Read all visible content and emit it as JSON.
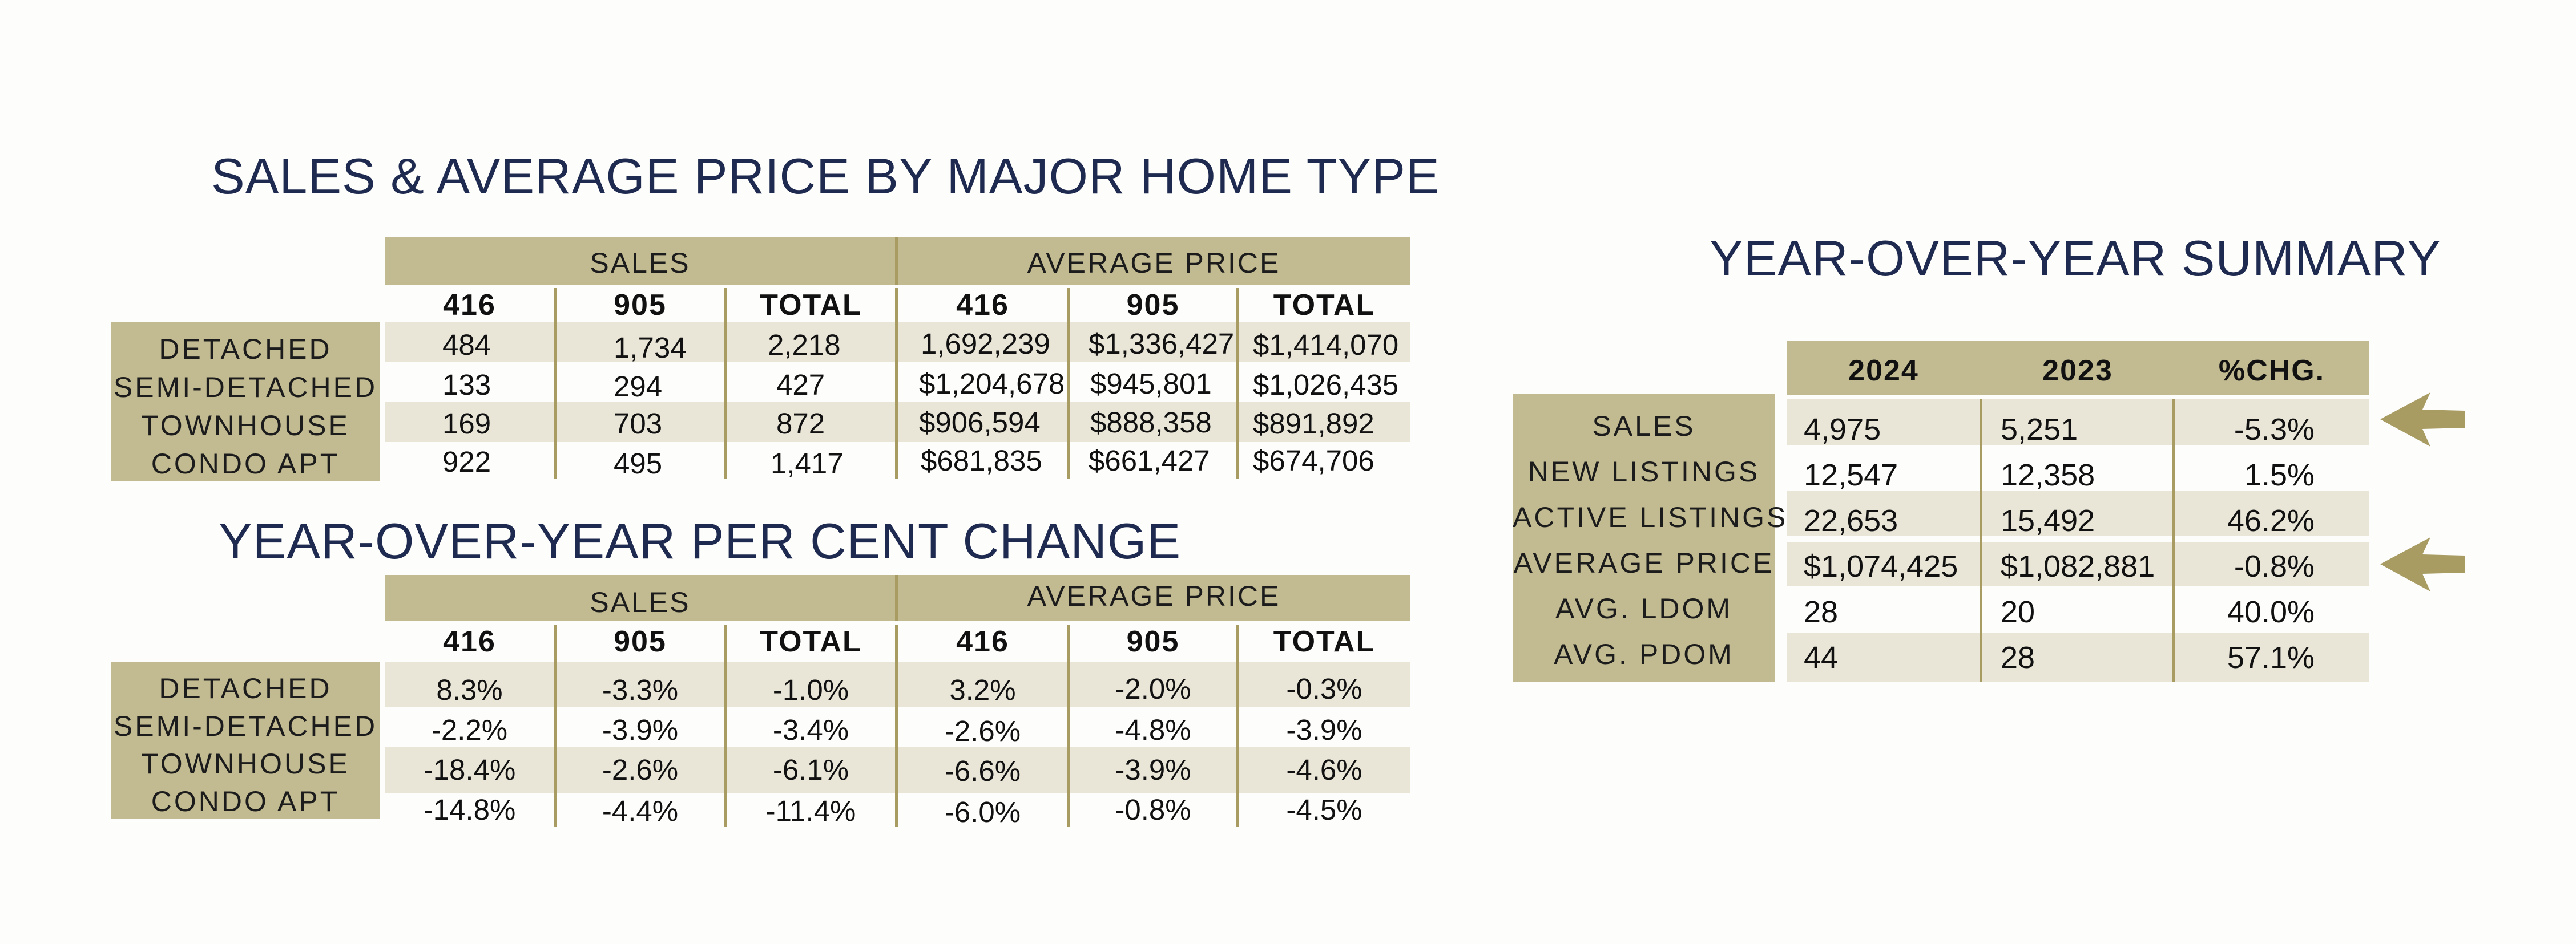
{
  "titles": {
    "sales_avg": "SALES & AVERAGE PRICE BY MAJOR HOME TYPE",
    "pct_change": "YEAR-OVER-YEAR PER CENT CHANGE",
    "summary": "YEAR-OVER-YEAR SUMMARY"
  },
  "group_headers": {
    "sales": "SALES",
    "avg_price": "AVERAGE PRICE"
  },
  "columns": [
    "416",
    "905",
    "TOTAL",
    "416",
    "905",
    "TOTAL"
  ],
  "home_types": [
    "DETACHED",
    "SEMI-DETACHED",
    "TOWNHOUSE",
    "CONDO APT"
  ],
  "sales_table": [
    [
      "484",
      "1,734",
      "2,218",
      "1,692,239",
      "$1,336,427",
      "$1,414,070"
    ],
    [
      "133",
      "294",
      "427",
      "$1,204,678",
      "$945,801",
      "$1,026,435"
    ],
    [
      "169",
      "703",
      "872",
      "$906,594",
      "$888,358",
      "$891,892"
    ],
    [
      "922",
      "495",
      "1,417",
      "$681,835",
      "$661,427",
      "$674,706"
    ]
  ],
  "pct_table": [
    [
      "8.3%",
      "-3.3%",
      "-1.0%",
      "3.2%",
      "-2.0%",
      "-0.3%"
    ],
    [
      "-2.2%",
      "-3.9%",
      "-3.4%",
      "-2.6%",
      "-4.8%",
      "-3.9%"
    ],
    [
      "-18.4%",
      "-2.6%",
      "-6.1%",
      "-6.6%",
      "-3.9%",
      "-4.6%"
    ],
    [
      "-14.8%",
      "-4.4%",
      "-11.4%",
      "-6.0%",
      "-0.8%",
      "-4.5%"
    ]
  ],
  "summary": {
    "headers": [
      "2024",
      "2023",
      "%CHG."
    ],
    "rows": [
      {
        "label": "SALES",
        "v2024": "4,975",
        "v2023": "5,251",
        "chg": "-5.3%"
      },
      {
        "label": "NEW LISTINGS",
        "v2024": "12,547",
        "v2023": "12,358",
        "chg": "1.5%"
      },
      {
        "label": "ACTIVE LISTINGS",
        "v2024": "22,653",
        "v2023": "15,492",
        "chg": "46.2%"
      },
      {
        "label": "AVERAGE PRICE",
        "v2024": "$1,074,425",
        "v2023": "$1,082,881",
        "chg": "-0.8%"
      },
      {
        "label": "AVG. LDOM",
        "v2024": "28",
        "v2023": "20",
        "chg": "40.0%"
      },
      {
        "label": "AVG. PDOM",
        "v2024": "44",
        "v2023": "28",
        "chg": "57.1%"
      }
    ]
  },
  "colors": {
    "title": "#1e2a4f",
    "band": "#c2bb92",
    "stripe": "#e9e6d8",
    "divider": "#a89c63",
    "arrow": "#a89c63"
  }
}
